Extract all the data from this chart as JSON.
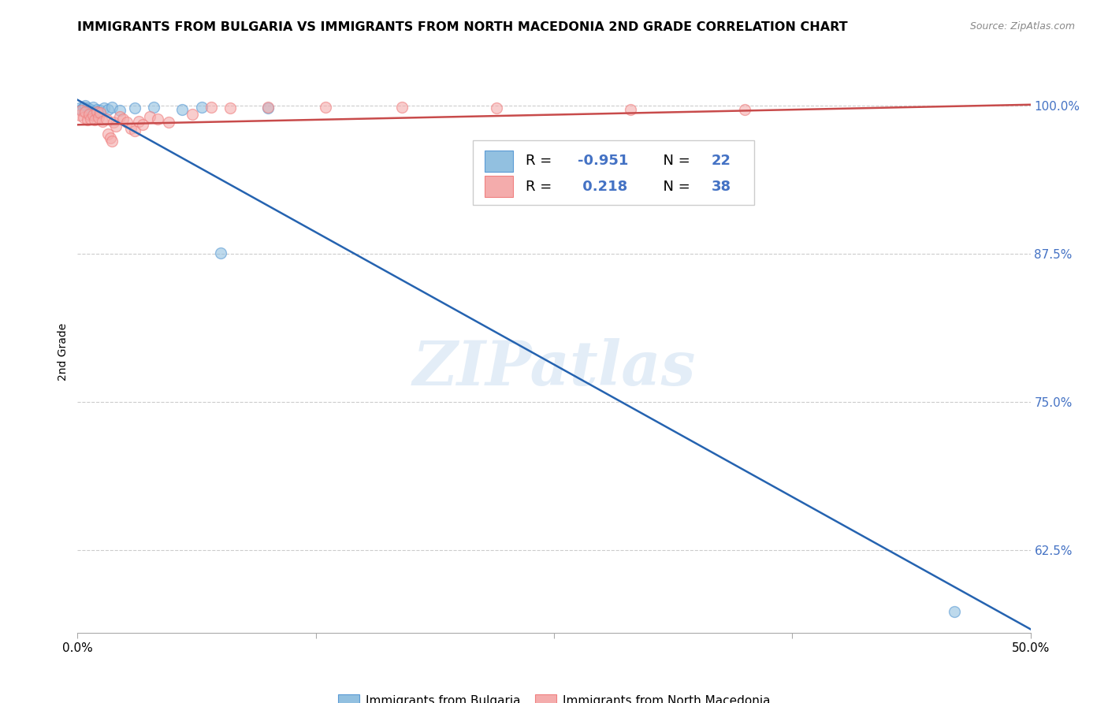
{
  "title": "IMMIGRANTS FROM BULGARIA VS IMMIGRANTS FROM NORTH MACEDONIA 2ND GRADE CORRELATION CHART",
  "source": "Source: ZipAtlas.com",
  "ylabel": "2nd Grade",
  "ylabel_ticks": [
    "100.0%",
    "87.5%",
    "75.0%",
    "62.5%"
  ],
  "ylabel_tick_vals": [
    1.0,
    0.875,
    0.75,
    0.625
  ],
  "xlim": [
    0.0,
    0.5
  ],
  "ylim": [
    0.555,
    1.03
  ],
  "legend_blue_r": "-0.951",
  "legend_blue_n": "22",
  "legend_pink_r": "0.218",
  "legend_pink_n": "38",
  "blue_scatter_x": [
    0.001,
    0.002,
    0.003,
    0.004,
    0.005,
    0.006,
    0.007,
    0.008,
    0.009,
    0.01,
    0.012,
    0.014,
    0.016,
    0.018,
    0.022,
    0.03,
    0.04,
    0.055,
    0.065,
    0.075,
    0.1,
    0.46
  ],
  "blue_scatter_y": [
    0.998,
    0.997,
    0.999,
    1.0,
    0.998,
    0.996,
    0.997,
    0.999,
    0.995,
    0.997,
    0.996,
    0.998,
    0.997,
    0.999,
    0.996,
    0.998,
    0.999,
    0.997,
    0.999,
    0.876,
    0.998,
    0.573
  ],
  "pink_scatter_x": [
    0.001,
    0.002,
    0.003,
    0.004,
    0.005,
    0.006,
    0.007,
    0.008,
    0.009,
    0.01,
    0.011,
    0.012,
    0.013,
    0.015,
    0.016,
    0.017,
    0.018,
    0.019,
    0.02,
    0.022,
    0.024,
    0.026,
    0.028,
    0.03,
    0.032,
    0.034,
    0.038,
    0.042,
    0.048,
    0.06,
    0.07,
    0.08,
    0.1,
    0.13,
    0.17,
    0.22,
    0.29,
    0.35
  ],
  "pink_scatter_y": [
    0.992,
    0.996,
    0.99,
    0.995,
    0.988,
    0.993,
    0.989,
    0.992,
    0.988,
    0.995,
    0.99,
    0.994,
    0.987,
    0.989,
    0.976,
    0.973,
    0.97,
    0.986,
    0.983,
    0.991,
    0.989,
    0.986,
    0.981,
    0.979,
    0.987,
    0.984,
    0.991,
    0.989,
    0.986,
    0.993,
    0.999,
    0.998,
    0.999,
    0.999,
    0.999,
    0.998,
    0.997,
    0.997
  ],
  "blue_line_x": [
    0.0,
    0.5
  ],
  "blue_line_y": [
    1.005,
    0.558
  ],
  "pink_line_x": [
    0.0,
    0.5
  ],
  "pink_line_y": [
    0.984,
    1.001
  ],
  "blue_color": "#92C0E0",
  "pink_color": "#F4ACAC",
  "blue_edge_color": "#5B9BD5",
  "pink_edge_color": "#F08080",
  "blue_line_color": "#2563B0",
  "pink_line_color": "#C84B4B",
  "watermark": "ZIPatlas",
  "bg_color": "#FFFFFF",
  "grid_color": "#CCCCCC",
  "right_tick_color": "#4472C4"
}
